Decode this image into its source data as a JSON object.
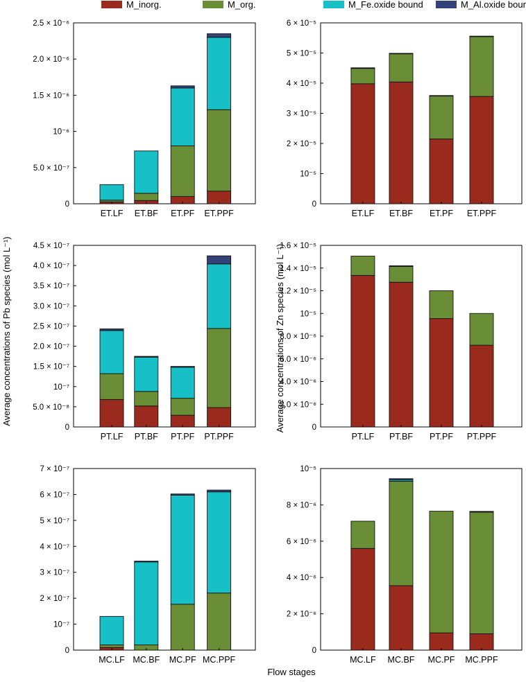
{
  "legend": {
    "items": [
      {
        "label": "M_inorg.",
        "color": "#9B2A1E"
      },
      {
        "label": "M_org.",
        "color": "#6A8E35"
      },
      {
        "label": "M_Fe.oxide bound",
        "color": "#17BFC6"
      },
      {
        "label": "M_Al.oxide bound",
        "color": "#34427A"
      }
    ]
  },
  "labels": {
    "xlabel": "Flow stages",
    "ylabel_left": "Average concentrations of Pb species (mol L⁻¹)",
    "ylabel_right": "Average concentrations of Zn species (mol L⁻¹)"
  },
  "chart_data": [
    {
      "type": "bar",
      "stacked": true,
      "element": "Pb",
      "panel": "top-left",
      "categories": [
        "ET.LF",
        "ET.BF",
        "ET.PF",
        "ET.PPF"
      ],
      "ylim": [
        0,
        2.5e-06
      ],
      "yticks": [
        {
          "v": 0,
          "label": "0"
        },
        {
          "v": 5e-07,
          "label": "5.0 × 10⁻⁷"
        },
        {
          "v": 1e-06,
          "label": "10⁻⁶"
        },
        {
          "v": 1.5e-06,
          "label": "1.5 × 10⁻⁶"
        },
        {
          "v": 2e-06,
          "label": "2.0 × 10⁻⁶"
        },
        {
          "v": 2.5e-06,
          "label": "2.5 × 10⁻⁶"
        }
      ],
      "series": [
        {
          "name": "M_inorg.",
          "values": [
            2.5e-08,
            4.5e-08,
            1e-07,
            1.75e-07
          ]
        },
        {
          "name": "M_org.",
          "values": [
            2.5e-08,
            1e-07,
            7e-07,
            1.125e-06
          ]
        },
        {
          "name": "M_Fe.oxide bound",
          "values": [
            2.15e-07,
            5.85e-07,
            8e-07,
            1e-06
          ]
        },
        {
          "name": "M_Al.oxide bound",
          "values": [
            0,
            0,
            3e-08,
            5e-08
          ]
        }
      ]
    },
    {
      "type": "bar",
      "stacked": true,
      "element": "Zn",
      "panel": "top-right",
      "categories": [
        "ET.LF",
        "ET.BF",
        "ET.PF",
        "ET.PPF"
      ],
      "ylim": [
        0,
        6e-05
      ],
      "yticks": [
        {
          "v": 0,
          "label": "0"
        },
        {
          "v": 1e-05,
          "label": "10⁻⁵"
        },
        {
          "v": 2e-05,
          "label": "2 × 10⁻⁵"
        },
        {
          "v": 3e-05,
          "label": "3 × 10⁻⁵"
        },
        {
          "v": 4e-05,
          "label": "4 × 10⁻⁵"
        },
        {
          "v": 5e-05,
          "label": "5 × 10⁻⁵"
        },
        {
          "v": 6e-05,
          "label": "6 × 10⁻⁵"
        }
      ],
      "series": [
        {
          "name": "M_inorg.",
          "values": [
            3.98e-05,
            4.04e-05,
            2.15e-05,
            3.56e-05
          ]
        },
        {
          "name": "M_org.",
          "values": [
            5.1e-06,
            9.4e-06,
            1.43e-05,
            1.99e-05
          ]
        },
        {
          "name": "M_Fe.oxide bound",
          "values": [
            0,
            0,
            0,
            0
          ]
        },
        {
          "name": "M_Al.oxide bound",
          "values": [
            2e-07,
            1e-07,
            1e-07,
            1e-07
          ]
        }
      ]
    },
    {
      "type": "bar",
      "stacked": true,
      "element": "Pb",
      "panel": "middle-left",
      "categories": [
        "PT.LF",
        "PT.BF",
        "PT.PF",
        "PT.PPF"
      ],
      "ylim": [
        0,
        4.5e-07
      ],
      "yticks": [
        {
          "v": 0,
          "label": "0"
        },
        {
          "v": 5e-08,
          "label": "5.0 × 10⁻⁸"
        },
        {
          "v": 1e-07,
          "label": "10⁻⁷"
        },
        {
          "v": 1.5e-07,
          "label": "1.5 × 10⁻⁷"
        },
        {
          "v": 2e-07,
          "label": "2.0 × 10⁻⁷"
        },
        {
          "v": 2.5e-07,
          "label": "2.5 × 10⁻⁷"
        },
        {
          "v": 3e-07,
          "label": "3.0 × 10⁻⁷"
        },
        {
          "v": 3.5e-07,
          "label": "3.5 × 10⁻⁷"
        },
        {
          "v": 4e-07,
          "label": "4.0 × 10⁻⁷"
        },
        {
          "v": 4.5e-07,
          "label": "4.5 × 10⁻⁷"
        }
      ],
      "series": [
        {
          "name": "M_inorg.",
          "values": [
            6.8e-08,
            5.2e-08,
            2.9e-08,
            4.8e-08
          ]
        },
        {
          "name": "M_org.",
          "values": [
            6.4e-08,
            3.6e-08,
            4.2e-08,
            1.96e-07
          ]
        },
        {
          "name": "M_Fe.oxide bound",
          "values": [
            1.07e-07,
            8.5e-08,
            7.7e-08,
            1.6e-07
          ]
        },
        {
          "name": "M_Al.oxide bound",
          "values": [
            4e-09,
            2e-09,
            2e-09,
            2e-08
          ]
        }
      ]
    },
    {
      "type": "bar",
      "stacked": true,
      "element": "Zn",
      "panel": "middle-right",
      "categories": [
        "PT.LF",
        "PT.BF",
        "PT.PF",
        "PT.PPF"
      ],
      "ylim": [
        0,
        1.6e-05
      ],
      "yticks": [
        {
          "v": 0,
          "label": "0"
        },
        {
          "v": 2e-06,
          "label": "2.0 × 10⁻⁶"
        },
        {
          "v": 4e-06,
          "label": "4.0 × 10⁻⁶"
        },
        {
          "v": 6e-06,
          "label": "6.0 × 10⁻⁶"
        },
        {
          "v": 8e-06,
          "label": "8.0 × 10⁻⁶"
        },
        {
          "v": 1e-05,
          "label": "10⁻⁵"
        },
        {
          "v": 1.2e-05,
          "label": "1.2 × 10⁻⁵"
        },
        {
          "v": 1.4e-05,
          "label": "1.4 × 10⁻⁵"
        },
        {
          "v": 1.6e-05,
          "label": "1.6 × 10⁻⁵"
        }
      ],
      "series": [
        {
          "name": "M_inorg.",
          "values": [
            1.335e-05,
            1.275e-05,
            9.55e-06,
            7.2e-06
          ]
        },
        {
          "name": "M_org.",
          "values": [
            1.7e-06,
            1.4e-06,
            2.45e-06,
            2.8e-06
          ]
        },
        {
          "name": "M_Fe.oxide bound",
          "values": [
            0,
            0,
            0,
            0
          ]
        },
        {
          "name": "M_Al.oxide bound",
          "values": [
            0,
            5e-08,
            0,
            0
          ]
        }
      ]
    },
    {
      "type": "bar",
      "stacked": true,
      "element": "Pb",
      "panel": "bottom-left",
      "categories": [
        "MC.LF",
        "MC.BF",
        "MC.PF",
        "MC.PPF"
      ],
      "ylim": [
        0,
        7e-07
      ],
      "yticks": [
        {
          "v": 0,
          "label": "0"
        },
        {
          "v": 1e-07,
          "label": "10⁻⁷"
        },
        {
          "v": 2e-07,
          "label": "2 × 10⁻⁷"
        },
        {
          "v": 3e-07,
          "label": "3 × 10⁻⁷"
        },
        {
          "v": 4e-07,
          "label": "4 × 10⁻⁷"
        },
        {
          "v": 5e-07,
          "label": "5 × 10⁻⁷"
        },
        {
          "v": 6e-07,
          "label": "6 × 10⁻⁷"
        },
        {
          "v": 7e-07,
          "label": "7 × 10⁻⁷"
        }
      ],
      "series": [
        {
          "name": "M_inorg.",
          "values": [
            1e-08,
            0,
            0,
            0
          ]
        },
        {
          "name": "M_org.",
          "values": [
            1e-08,
            2e-08,
            1.77e-07,
            2.2e-07
          ]
        },
        {
          "name": "M_Fe.oxide bound",
          "values": [
            1.1e-07,
            3.2e-07,
            4.2e-07,
            3.9e-07
          ]
        },
        {
          "name": "M_Al.oxide bound",
          "values": [
            0,
            3e-09,
            5e-09,
            7e-09
          ]
        }
      ]
    },
    {
      "type": "bar",
      "stacked": true,
      "element": "Zn",
      "panel": "bottom-right",
      "categories": [
        "MC.LF",
        "MC.BF",
        "MC.PF",
        "MC.PPF"
      ],
      "ylim": [
        0,
        1e-05
      ],
      "yticks": [
        {
          "v": 0,
          "label": "0"
        },
        {
          "v": 2e-06,
          "label": "2 × 10⁻⁶"
        },
        {
          "v": 4e-06,
          "label": "4 × 10⁻⁶"
        },
        {
          "v": 6e-06,
          "label": "6 × 10⁻⁶"
        },
        {
          "v": 8e-06,
          "label": "8 × 10⁻⁶"
        },
        {
          "v": 1e-05,
          "label": "10⁻⁵"
        }
      ],
      "series": [
        {
          "name": "M_inorg.",
          "values": [
            5.6e-06,
            3.55e-06,
            9.5e-07,
            9e-07
          ]
        },
        {
          "name": "M_org.",
          "values": [
            1.5e-06,
            5.75e-06,
            6.7e-06,
            6.7e-06
          ]
        },
        {
          "name": "M_Fe.oxide bound",
          "values": [
            0,
            8e-08,
            0,
            0
          ]
        },
        {
          "name": "M_Al.oxide bound",
          "values": [
            0,
            6e-08,
            0,
            4e-08
          ]
        }
      ]
    }
  ]
}
